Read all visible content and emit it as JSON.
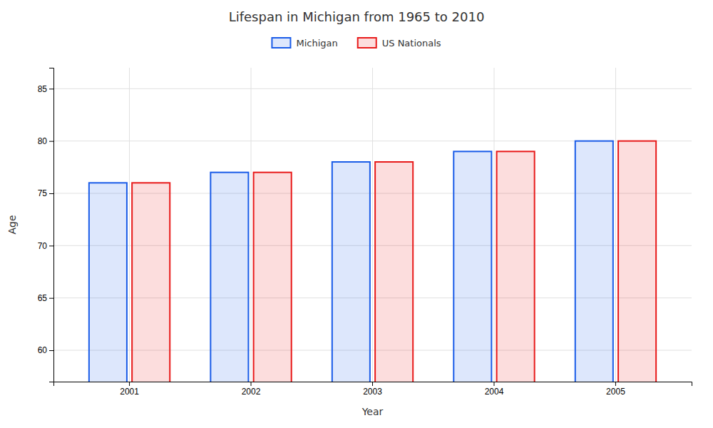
{
  "chart_data": {
    "type": "bar",
    "title": "Lifespan in Michigan from 1965 to 2010",
    "xlabel": "Year",
    "ylabel": "Age",
    "categories": [
      "2001",
      "2002",
      "2003",
      "2004",
      "2005"
    ],
    "series": [
      {
        "name": "Michigan",
        "color": "#1a5ce8",
        "values": [
          76,
          77,
          78,
          79,
          80
        ]
      },
      {
        "name": "US Nationals",
        "color": "#e81a1a",
        "values": [
          76,
          77,
          78,
          79,
          80
        ]
      }
    ],
    "ylim": [
      57,
      87
    ],
    "yticks": [
      60,
      65,
      70,
      75,
      80,
      85
    ],
    "grid": true,
    "legend": "top"
  }
}
